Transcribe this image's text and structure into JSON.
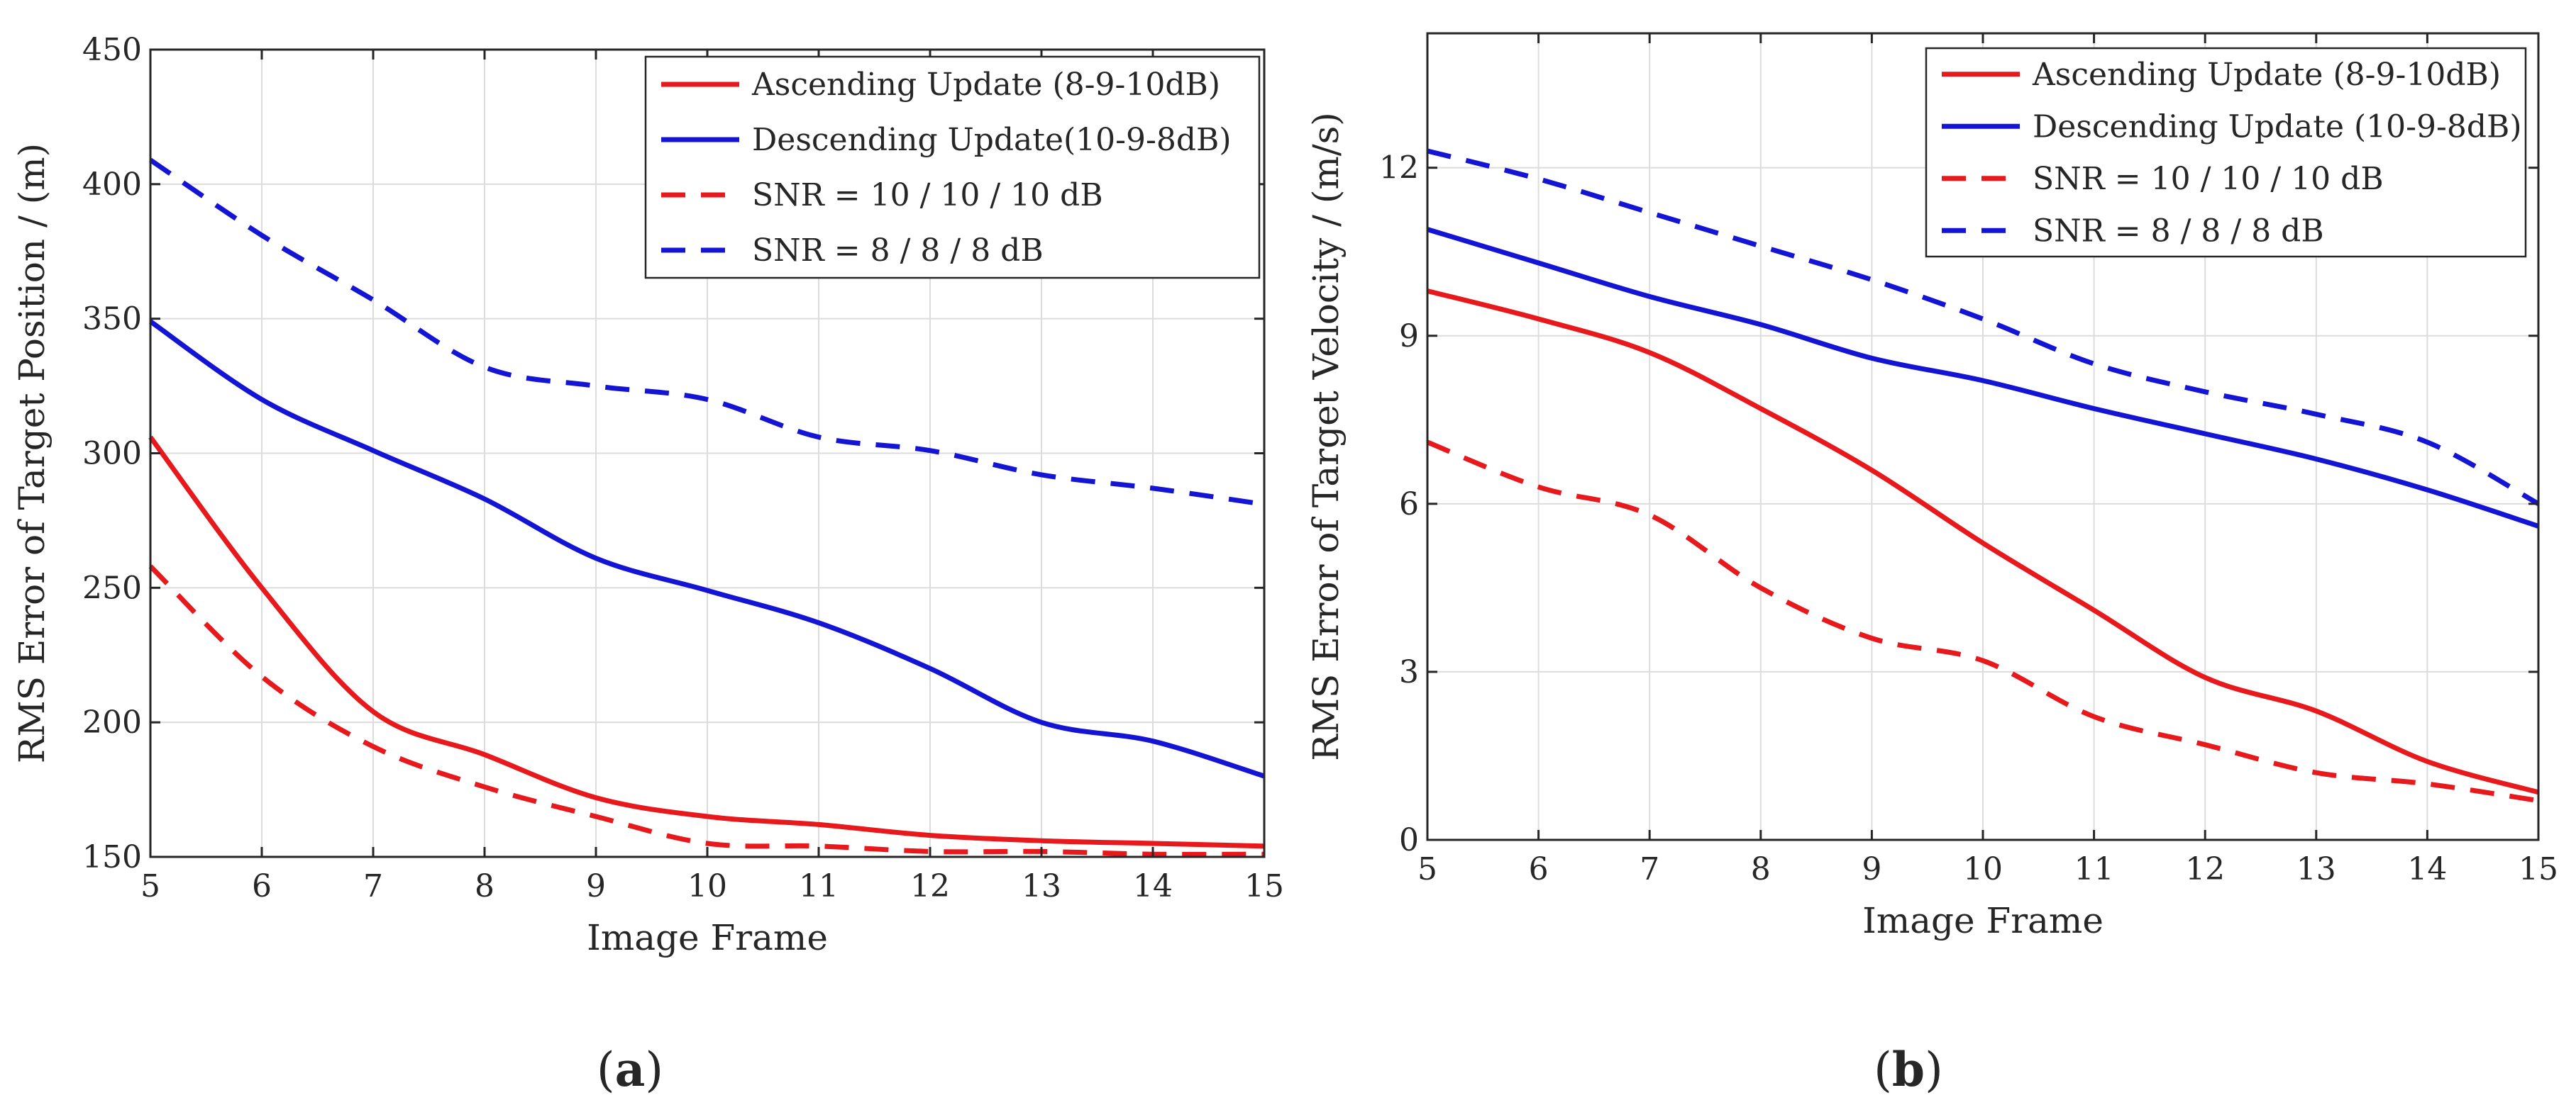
{
  "figure": {
    "caption_a_open": "(",
    "caption_a_letter": "a",
    "caption_a_close": ")",
    "caption_b_open": "(",
    "caption_b_letter": "b",
    "caption_b_close": ")"
  },
  "colors": {
    "red": "#e8191c",
    "blue": "#1414d4",
    "grid": "#dcdcdc",
    "axis": "#262626"
  },
  "chart_data": [
    {
      "type": "line",
      "title": "",
      "xlabel": "Image Frame",
      "ylabel": "RMS Error of Target Position / (m)",
      "xlim": [
        5,
        15
      ],
      "ylim": [
        150,
        450
      ],
      "xticks": [
        5,
        6,
        7,
        8,
        9,
        10,
        11,
        12,
        13,
        14,
        15
      ],
      "yticks": [
        150,
        200,
        250,
        300,
        350,
        400,
        450
      ],
      "grid": true,
      "legend_position": "top-right",
      "x": [
        5,
        6,
        7,
        8,
        9,
        10,
        11,
        12,
        13,
        14,
        15
      ],
      "series": [
        {
          "name": "Ascending Update (8-9-10dB)",
          "color": "red",
          "dash": "solid",
          "values": [
            306,
            250,
            204,
            188,
            172,
            165,
            162,
            158,
            156,
            155,
            154
          ]
        },
        {
          "name": "Descending Update(10-9-8dB)",
          "color": "blue",
          "dash": "solid",
          "values": [
            349,
            320,
            301,
            283,
            261,
            249,
            237,
            220,
            200,
            193,
            180
          ]
        },
        {
          "name": "SNR = 10 / 10 / 10 dB",
          "color": "red",
          "dash": "dashed",
          "values": [
            258,
            217,
            191,
            176,
            165,
            155,
            154,
            152,
            152,
            151,
            151
          ]
        },
        {
          "name": "SNR = 8 / 8 / 8 dB",
          "color": "blue",
          "dash": "dashed",
          "values": [
            409,
            381,
            357,
            332,
            325,
            320,
            306,
            301,
            292,
            287,
            281
          ]
        }
      ]
    },
    {
      "type": "line",
      "title": "",
      "xlabel": "Image Frame",
      "ylabel": "RMS Error of Target Velocity / (m/s)",
      "xlim": [
        5,
        15
      ],
      "ylim": [
        0,
        14.4
      ],
      "xticks": [
        5,
        6,
        7,
        8,
        9,
        10,
        11,
        12,
        13,
        14,
        15
      ],
      "yticks": [
        0,
        3,
        6,
        9,
        12
      ],
      "grid": true,
      "legend_position": "top-right",
      "x": [
        5,
        6,
        7,
        8,
        9,
        10,
        11,
        12,
        13,
        14,
        15
      ],
      "series": [
        {
          "name": "Ascending Update (8-9-10dB)",
          "color": "red",
          "dash": "solid",
          "values": [
            9.8,
            9.3,
            8.7,
            7.7,
            6.6,
            5.3,
            4.1,
            2.9,
            2.3,
            1.4,
            0.85
          ]
        },
        {
          "name": "Descending Update (10-9-8dB)",
          "color": "blue",
          "dash": "solid",
          "values": [
            10.9,
            10.3,
            9.7,
            9.2,
            8.6,
            8.2,
            7.7,
            7.25,
            6.8,
            6.25,
            5.6
          ]
        },
        {
          "name": "SNR = 10 / 10 / 10 dB",
          "color": "red",
          "dash": "dashed",
          "values": [
            7.1,
            6.3,
            5.8,
            4.5,
            3.6,
            3.2,
            2.2,
            1.7,
            1.2,
            1.0,
            0.7
          ]
        },
        {
          "name": "SNR = 8 / 8 / 8 dB",
          "color": "blue",
          "dash": "dashed",
          "values": [
            12.3,
            11.8,
            11.2,
            10.6,
            10.0,
            9.3,
            8.5,
            8.0,
            7.6,
            7.1,
            6.0
          ]
        }
      ]
    }
  ]
}
